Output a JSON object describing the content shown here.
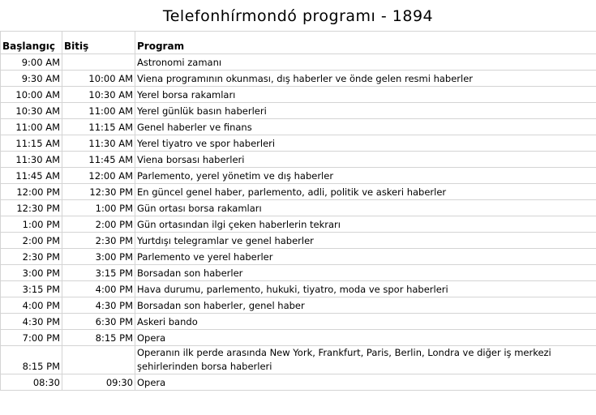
{
  "title": "Telefonhírmondó programı - 1894",
  "table": {
    "header": [
      "Başlangıç",
      "Bitiş",
      "Program"
    ],
    "rows": [
      [
        "9:00 AM",
        null,
        "Astronomi zamanı"
      ],
      [
        "9:30 AM",
        "10:00 AM",
        "Viena programının okunması, dış haberler ve önde gelen resmi haberler"
      ],
      [
        "10:00 AM",
        "10:30 AM",
        "Yerel borsa rakamları"
      ],
      [
        "10:30 AM",
        "11:00 AM",
        "Yerel günlük basın haberleri"
      ],
      [
        "11:00 AM",
        "11:15 AM",
        "Genel haberler ve finans"
      ],
      [
        "11:15 AM",
        "11:30 AM",
        "Yerel tiyatro ve spor haberleri"
      ],
      [
        "11:30 AM",
        "11:45 AM",
        "Viena borsası haberleri"
      ],
      [
        "11:45 AM",
        "12:00 AM",
        "Parlemento, yerel yönetim ve dış haberler"
      ],
      [
        "12:00 PM",
        "12:30 PM",
        "En güncel genel haber, parlemento, adli, politik ve askeri haberler"
      ],
      [
        "12:30 PM",
        "1:00 PM",
        "Gün ortası borsa rakamları"
      ],
      [
        "1:00 PM",
        "2:00 PM",
        "Gün ortasından ilgi çeken haberlerin tekrarı"
      ],
      [
        "2:00 PM",
        "2:30 PM",
        "Yurtdışı telegramlar ve genel haberler"
      ],
      [
        "2:30 PM",
        "3:00 PM",
        "Parlemento ve yerel haberler"
      ],
      [
        "3:00 PM",
        "3:15 PM",
        "Borsadan son haberler"
      ],
      [
        "3:15 PM",
        "4:00 PM",
        "Hava durumu, parlemento, hukuki, tiyatro, moda ve spor haberleri"
      ],
      [
        "4:00 PM",
        "4:30 PM",
        "Borsadan son haberler, genel haber"
      ],
      [
        "4:30 PM",
        "6:30 PM",
        "Askeri bando"
      ],
      [
        "7:00 PM",
        "8:15 PM",
        "Opera"
      ],
      [
        "8:15 PM",
        null,
        "Operanın ilk perde arasında New York, Frankfurt, Paris, Berlin, Londra ve diğer iş merkezi şehirlerinden borsa haberleri"
      ],
      [
        "08:30",
        "09:30",
        "Opera"
      ]
    ]
  }
}
